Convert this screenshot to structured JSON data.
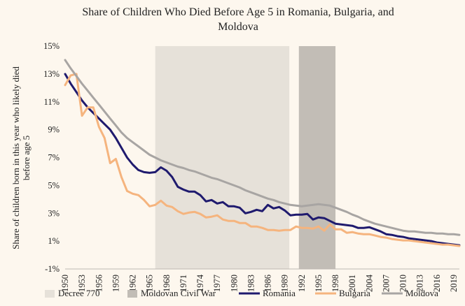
{
  "chart_data": {
    "type": "line",
    "title_lines": [
      "Share of  Children Who Died Before Age 5 in Romania, Bulgaria, and",
      "Moldova"
    ],
    "ylabel_lines": [
      "Share of children born in this year who likely died",
      "before age 5"
    ],
    "xlabel": "",
    "ylim": [
      -1,
      15
    ],
    "yticks": [
      -1,
      1,
      3,
      5,
      7,
      9,
      11,
      13,
      15
    ],
    "ytick_labels": [
      "-1%",
      "1%",
      "3%",
      "5%",
      "7%",
      "9%",
      "11%",
      "13%",
      "15%"
    ],
    "xlim": [
      1950,
      2020
    ],
    "xticks": [
      1950,
      1953,
      1956,
      1959,
      1962,
      1965,
      1968,
      1971,
      1974,
      1977,
      1980,
      1983,
      1986,
      1989,
      1992,
      1995,
      1998,
      2001,
      2004,
      2007,
      2010,
      2013,
      2016,
      2019
    ],
    "xtick_labels": [
      "1950",
      "1953",
      "1956",
      "1959",
      "1962",
      "1965",
      "1968",
      "1971",
      "1974",
      "1977",
      "1980",
      "1983",
      "1986",
      "1989",
      "1992",
      "1995",
      "1998",
      "2001",
      "2004",
      "2007",
      "2010",
      "2013",
      "2016",
      "2019"
    ],
    "shaded_regions": [
      {
        "name": "Decree 770",
        "start": 1966,
        "end": 1989.8,
        "color": "#e6e1d9"
      },
      {
        "name": "Moldovan Civil War",
        "start": 1991.5,
        "end": 1998,
        "color": "#c2bdb6"
      }
    ],
    "x": [
      1950,
      1951,
      1952,
      1953,
      1954,
      1955,
      1956,
      1957,
      1958,
      1959,
      1960,
      1961,
      1962,
      1963,
      1964,
      1965,
      1966,
      1967,
      1968,
      1969,
      1970,
      1971,
      1972,
      1973,
      1974,
      1975,
      1976,
      1977,
      1978,
      1979,
      1980,
      1981,
      1982,
      1983,
      1984,
      1985,
      1986,
      1987,
      1988,
      1989,
      1990,
      1991,
      1992,
      1993,
      1994,
      1995,
      1996,
      1997,
      1998,
      1999,
      2000,
      2001,
      2002,
      2003,
      2004,
      2005,
      2006,
      2007,
      2008,
      2009,
      2010,
      2011,
      2012,
      2013,
      2014,
      2015,
      2016,
      2017,
      2018,
      2019,
      2020
    ],
    "series": [
      {
        "name": "Romania",
        "color": "#1f1a6e",
        "values": [
          13.0,
          12.3,
          11.7,
          11.1,
          10.6,
          10.2,
          9.8,
          9.4,
          9.0,
          8.4,
          7.7,
          7.0,
          6.5,
          6.1,
          5.95,
          5.9,
          5.95,
          6.3,
          6.05,
          5.6,
          4.9,
          4.7,
          4.55,
          4.55,
          4.3,
          3.85,
          3.95,
          3.7,
          3.8,
          3.5,
          3.5,
          3.4,
          3.0,
          3.1,
          3.25,
          3.15,
          3.6,
          3.35,
          3.45,
          3.2,
          2.85,
          2.9,
          2.9,
          2.95,
          2.55,
          2.7,
          2.65,
          2.45,
          2.25,
          2.2,
          2.15,
          2.1,
          1.95,
          1.95,
          2.0,
          1.85,
          1.7,
          1.5,
          1.45,
          1.35,
          1.3,
          1.2,
          1.15,
          1.1,
          1.05,
          1.0,
          0.9,
          0.85,
          0.8,
          0.75,
          0.7
        ]
      },
      {
        "name": "Bulgaria",
        "color": "#f5b47e",
        "values": [
          12.2,
          12.9,
          13.0,
          10.0,
          10.6,
          10.6,
          9.2,
          8.4,
          6.6,
          6.9,
          5.6,
          4.6,
          4.4,
          4.3,
          3.95,
          3.5,
          3.6,
          3.9,
          3.55,
          3.45,
          3.15,
          2.95,
          3.05,
          3.1,
          2.95,
          2.7,
          2.75,
          2.85,
          2.55,
          2.45,
          2.45,
          2.3,
          2.3,
          2.05,
          2.05,
          1.95,
          1.8,
          1.8,
          1.75,
          1.8,
          1.8,
          2.05,
          1.95,
          1.95,
          1.9,
          2.05,
          1.75,
          2.2,
          1.85,
          1.85,
          1.6,
          1.65,
          1.55,
          1.5,
          1.5,
          1.4,
          1.3,
          1.25,
          1.15,
          1.1,
          1.05,
          1.05,
          1.0,
          0.95,
          0.9,
          0.85,
          0.8,
          0.75,
          0.75,
          0.7,
          0.65
        ]
      },
      {
        "name": "Moldova",
        "color": "#a8a5a3",
        "values": [
          14.0,
          13.4,
          12.85,
          12.3,
          11.8,
          11.3,
          10.8,
          10.3,
          9.8,
          9.3,
          8.8,
          8.4,
          8.1,
          7.8,
          7.5,
          7.2,
          7.0,
          6.8,
          6.65,
          6.5,
          6.35,
          6.25,
          6.1,
          6.0,
          5.85,
          5.7,
          5.55,
          5.45,
          5.3,
          5.15,
          5.0,
          4.85,
          4.65,
          4.5,
          4.35,
          4.2,
          4.05,
          3.95,
          3.8,
          3.7,
          3.6,
          3.55,
          3.5,
          3.55,
          3.6,
          3.65,
          3.6,
          3.55,
          3.4,
          3.25,
          3.1,
          2.9,
          2.75,
          2.55,
          2.4,
          2.25,
          2.15,
          2.05,
          1.95,
          1.85,
          1.75,
          1.7,
          1.7,
          1.65,
          1.6,
          1.6,
          1.55,
          1.55,
          1.5,
          1.5,
          1.45
        ]
      }
    ],
    "legend": [
      {
        "label": "Decree 770",
        "kind": "box",
        "color": "#e6e1d9"
      },
      {
        "label": "Moldovan Civil War",
        "kind": "box",
        "color": "#c2bdb6"
      },
      {
        "label": "Romania",
        "kind": "line",
        "color": "#1f1a6e"
      },
      {
        "label": "Bulgaria",
        "kind": "line",
        "color": "#f5b47e"
      },
      {
        "label": "Moldova",
        "kind": "line",
        "color": "#a8a5a3"
      }
    ],
    "legend_position": "bottom",
    "grid": false,
    "background": "#fdf7ee"
  }
}
